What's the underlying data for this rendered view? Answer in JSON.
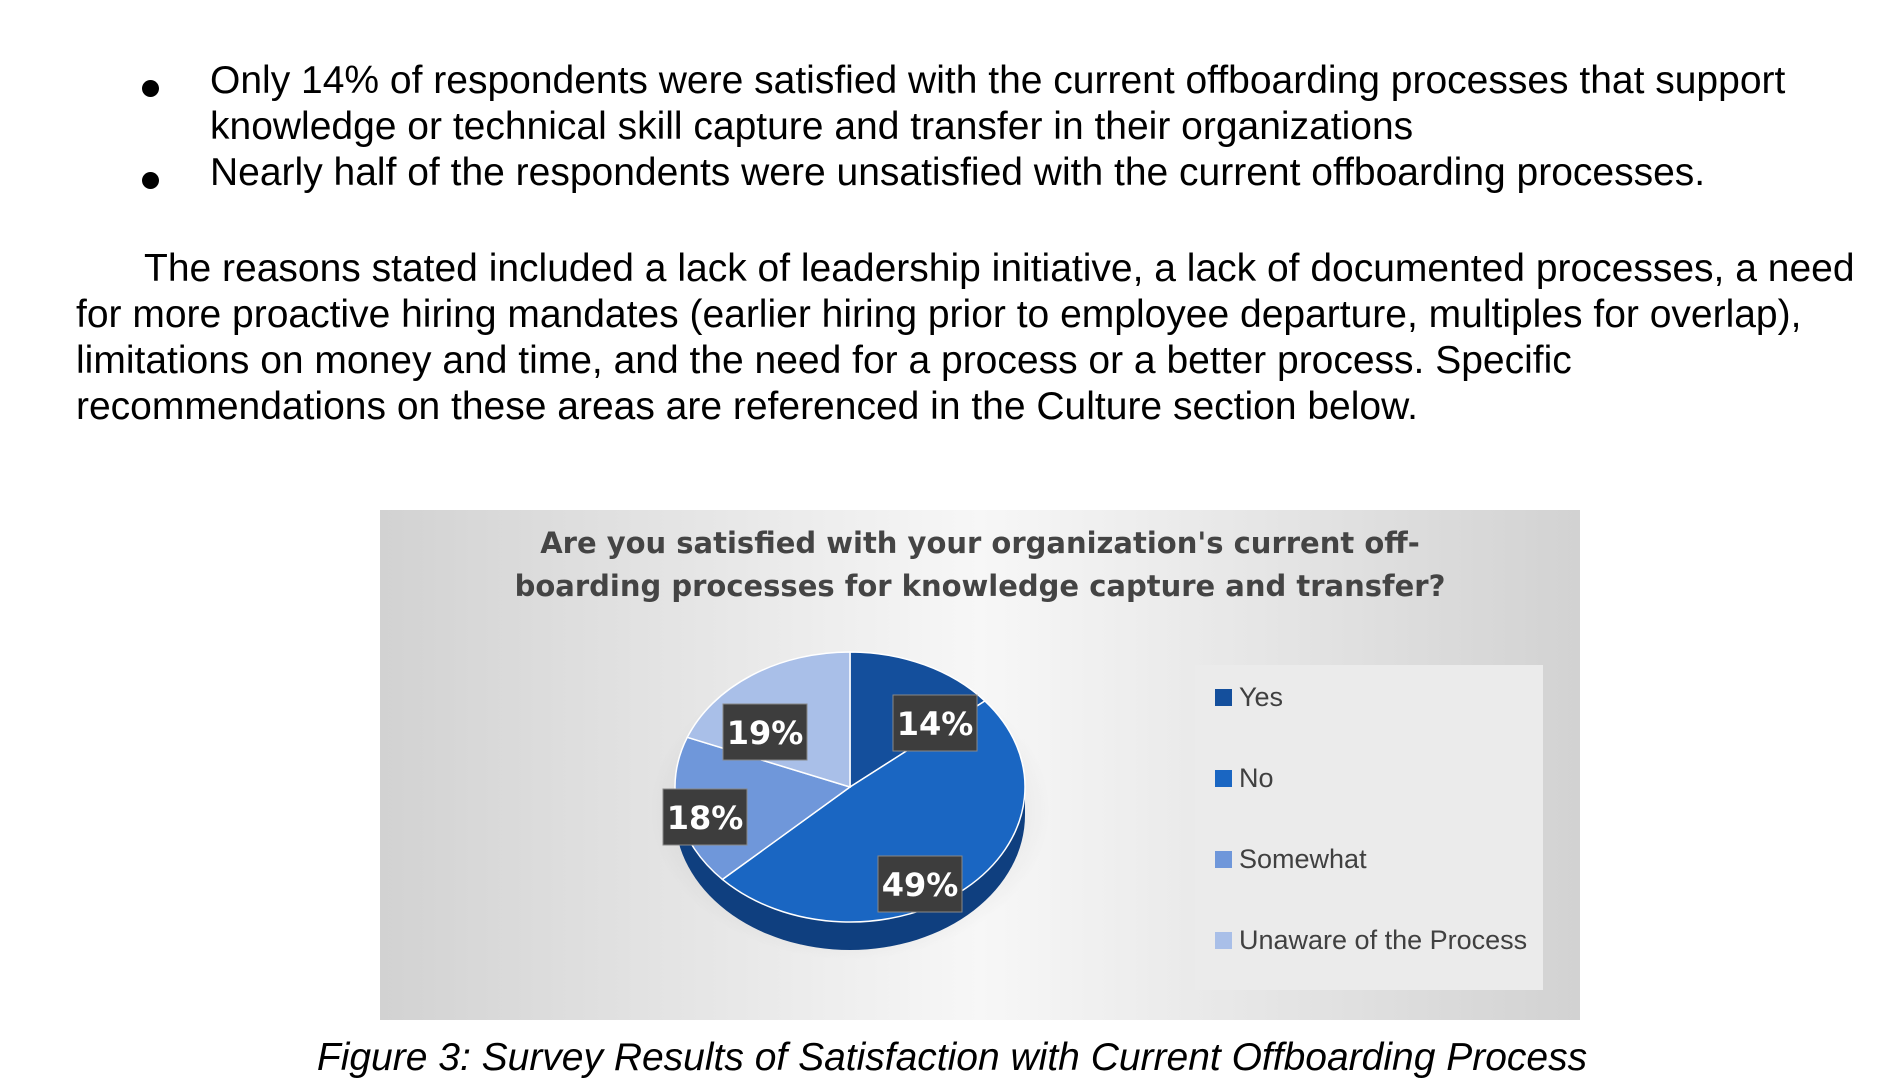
{
  "bullets": [
    {
      "text": "Only 14% of respondents were satisfied with the current offboarding processes that support knowledge or technical skill capture and transfer in their organizations"
    },
    {
      "text": "Nearly half of the respondents were unsatisfied with the current offboarding processes."
    }
  ],
  "paragraph": "The reasons stated included a lack of leadership initiative, a lack of documented processes, a need for more proactive hiring mandates (earlier hiring prior to employee departure, multiples for overlap), limitations on money and time, and the need for a process or a better process. Specific recommendations on these areas are referenced in the Culture section below.",
  "chart_data": {
    "type": "pie",
    "title_lines": [
      "Are you satisfied with your organization's current off-",
      "boarding processes for knowledge capture and transfer?"
    ],
    "legend_position": "right",
    "slices": [
      {
        "label": "Yes",
        "value": 14,
        "display": "14%",
        "color": "#144f9c"
      },
      {
        "label": "No",
        "value": 49,
        "display": "49%",
        "color": "#1a66c2"
      },
      {
        "label": "Somewhat",
        "value": 18,
        "display": "18%",
        "color": "#6f97da"
      },
      {
        "label": "Unaware of the Process",
        "value": 19,
        "display": "19%",
        "color": "#a9bfe8"
      }
    ]
  },
  "caption": "Figure 3: Survey Results of Satisfaction with Current Offboarding Process"
}
